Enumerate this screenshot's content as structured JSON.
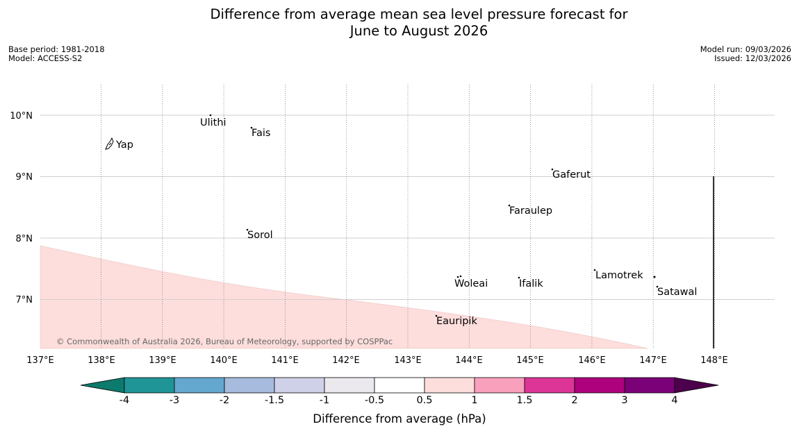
{
  "title_line1": "Difference from average mean sea level pressure forecast for",
  "title_line2": "June to August 2026",
  "meta_left": {
    "base_period": "Base period: 1981-2018",
    "model": "Model: ACCESS-S2"
  },
  "meta_right": {
    "model_run": "Model run: 09/03/2026",
    "issued": "Issued: 12/03/2026"
  },
  "map": {
    "lon_labels": [
      "137°E",
      "138°E",
      "139°E",
      "140°E",
      "141°E",
      "142°E",
      "143°E",
      "144°E",
      "145°E",
      "146°E",
      "147°E",
      "148°E"
    ],
    "lat_labels": [
      "10°N",
      "9°N",
      "8°N",
      "7°N"
    ],
    "places": [
      "Ulithi",
      "Fais",
      "Yap",
      "Gaferut",
      "Faraulep",
      "Sorol",
      "Lamotrek",
      "Woleai",
      "Ifalik",
      "Satawal",
      "Eauripik"
    ],
    "copyright": "© Commonwealth of Australia 2026, Bureau of Meteorology, supported by COSPPac",
    "shaded_category": "0.5 to 1",
    "shaded_color": "#fddedc"
  },
  "colorbar": {
    "ticks": [
      "-4",
      "-3",
      "-2",
      "-1.5",
      "-1",
      "-0.5",
      "0.5",
      "1",
      "1.5",
      "2",
      "3",
      "4"
    ],
    "colors": [
      "#0c7a6c",
      "#1f9597",
      "#64a7cf",
      "#a6bbdd",
      "#cfd1e8",
      "#ebe9ee",
      "#ffffff",
      "#fddedc",
      "#f9a0bd",
      "#dd3497",
      "#ae017e",
      "#7a0177",
      "#4d004b"
    ],
    "label": "Difference from average (hPa)"
  }
}
